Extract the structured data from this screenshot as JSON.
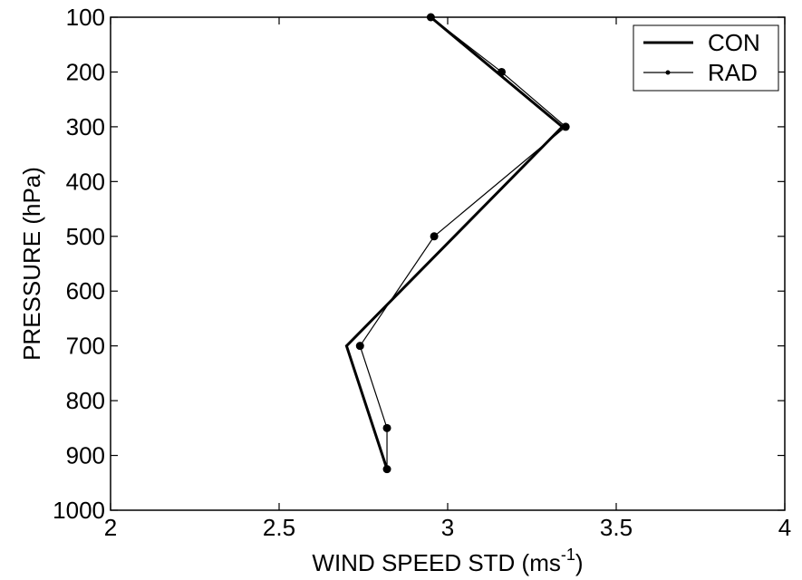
{
  "chart_data": {
    "type": "line",
    "xlabel": "WIND SPEED STD (ms",
    "xlabel_sup": "-1",
    "xlabel_close": ")",
    "ylabel": "PRESSURE (hPa)",
    "xlim": [
      2,
      4
    ],
    "ylim": [
      100,
      1000
    ],
    "y_reversed": true,
    "x_ticks": [
      "2",
      "2.5",
      "3",
      "3.5",
      "4"
    ],
    "y_ticks": [
      "100",
      "200",
      "300",
      "400",
      "500",
      "600",
      "700",
      "800",
      "900",
      "1000"
    ],
    "grid": false,
    "legend_position": "top-right",
    "series": [
      {
        "name": "CON",
        "style": "thick-line",
        "color": "#000000",
        "points": [
          {
            "x": 2.95,
            "y": 100
          },
          {
            "x": 3.34,
            "y": 300
          },
          {
            "x": 2.7,
            "y": 700
          },
          {
            "x": 2.82,
            "y": 925
          }
        ]
      },
      {
        "name": "RAD",
        "style": "thin-line-dots",
        "color": "#000000",
        "points": [
          {
            "x": 2.95,
            "y": 100
          },
          {
            "x": 3.16,
            "y": 200
          },
          {
            "x": 3.35,
            "y": 300
          },
          {
            "x": 2.96,
            "y": 500
          },
          {
            "x": 2.74,
            "y": 700
          },
          {
            "x": 2.82,
            "y": 850
          },
          {
            "x": 2.82,
            "y": 925
          }
        ]
      }
    ]
  }
}
